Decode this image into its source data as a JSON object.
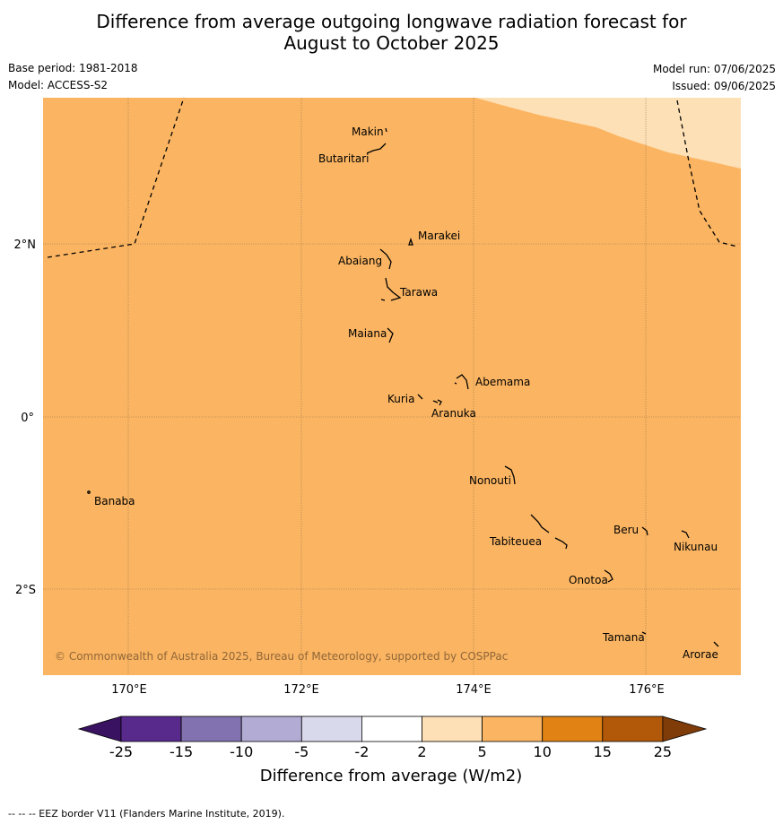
{
  "title_line1": "Difference from average outgoing longwave radiation forecast for",
  "title_line2": "August to October 2025",
  "base_period": "Base period: 1981-2018",
  "model": "Model: ACCESS-S2",
  "model_run": "Model run: 07/06/2025",
  "issued": "Issued: 09/06/2025",
  "copyright": "© Commonwealth of Australia 2025, Bureau of Meteorology, supported by COSPPac",
  "latitude_labels": [
    "2°N",
    "0°",
    "2°S"
  ],
  "longitude_labels": [
    "170°E",
    "172°E",
    "174°E",
    "176°E"
  ],
  "islands": [
    "Makin",
    "Butaritari",
    "Marakei",
    "Abaiang",
    "Tarawa",
    "Maiana",
    "Abemama",
    "Kuria",
    "Aranuka",
    "Nonouti",
    "Banaba",
    "Tabiteuea",
    "Beru",
    "Nikunau",
    "Onotoa",
    "Tamana",
    "Arorae"
  ],
  "colorbar": {
    "title": "Difference from average (W/m2)",
    "ticks": [
      "-25",
      "-15",
      "-10",
      "-5",
      "-2",
      "2",
      "5",
      "10",
      "15",
      "25"
    ],
    "colors": [
      "#3a1262",
      "#582a8c",
      "#8273b0",
      "#b2acd4",
      "#d9d9ec",
      "#ffffff",
      "#fde0b6",
      "#fbb562",
      "#e08214",
      "#b15908",
      "#7f3b08"
    ]
  },
  "map_colors": {
    "dominant": "#fbb562",
    "lighter": "#fde0b6"
  },
  "footnote": "--  --  -- EEZ border V11 (Flanders Marine Institute, 2019)."
}
